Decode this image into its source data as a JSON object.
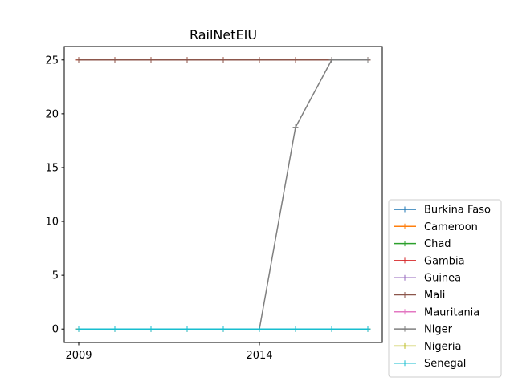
{
  "chart_data": {
    "type": "line",
    "title": "RailNetEIU",
    "xlabel": "",
    "ylabel": "",
    "x": [
      2009,
      2010,
      2011,
      2012,
      2013,
      2014,
      2015,
      2016,
      2017
    ],
    "xlim": [
      2008.6,
      2017.4
    ],
    "ylim": [
      -1.25,
      26.25
    ],
    "xticks": [
      2009,
      2014
    ],
    "yticks": [
      0,
      5,
      10,
      15,
      20,
      25
    ],
    "grid": false,
    "legend_position": "lower-right (outside)",
    "series": [
      {
        "name": "Burkina Faso",
        "color": "#1f77b4",
        "values": [
          0,
          0,
          0,
          0,
          0,
          0,
          0,
          0,
          0
        ]
      },
      {
        "name": "Cameroon",
        "color": "#ff7f0e",
        "values": [
          25,
          25,
          25,
          25,
          25,
          25,
          25,
          25,
          25
        ]
      },
      {
        "name": "Chad",
        "color": "#2ca02c",
        "values": [
          0,
          0,
          0,
          0,
          0,
          0,
          0,
          0,
          0
        ]
      },
      {
        "name": "Gambia",
        "color": "#d62728",
        "values": [
          25,
          25,
          25,
          25,
          25,
          25,
          25,
          25,
          25
        ]
      },
      {
        "name": "Guinea",
        "color": "#9467bd",
        "values": [
          0,
          0,
          0,
          0,
          0,
          0,
          0,
          0,
          0
        ]
      },
      {
        "name": "Mali",
        "color": "#8c564b",
        "values": [
          25,
          25,
          25,
          25,
          25,
          25,
          25,
          25,
          25
        ]
      },
      {
        "name": "Mauritania",
        "color": "#e377c2",
        "values": [
          0,
          0,
          0,
          0,
          0,
          0,
          0,
          0,
          0
        ]
      },
      {
        "name": "Niger",
        "color": "#7f7f7f",
        "values": [
          0,
          0,
          0,
          0,
          0,
          0,
          18.75,
          25,
          25
        ]
      },
      {
        "name": "Nigeria",
        "color": "#bcbd22",
        "values": [
          0,
          0,
          0,
          0,
          0,
          0,
          0,
          0,
          0
        ]
      },
      {
        "name": "Senegal",
        "color": "#17becf",
        "values": [
          0,
          0,
          0,
          0,
          0,
          0,
          0,
          0,
          0
        ]
      }
    ]
  }
}
